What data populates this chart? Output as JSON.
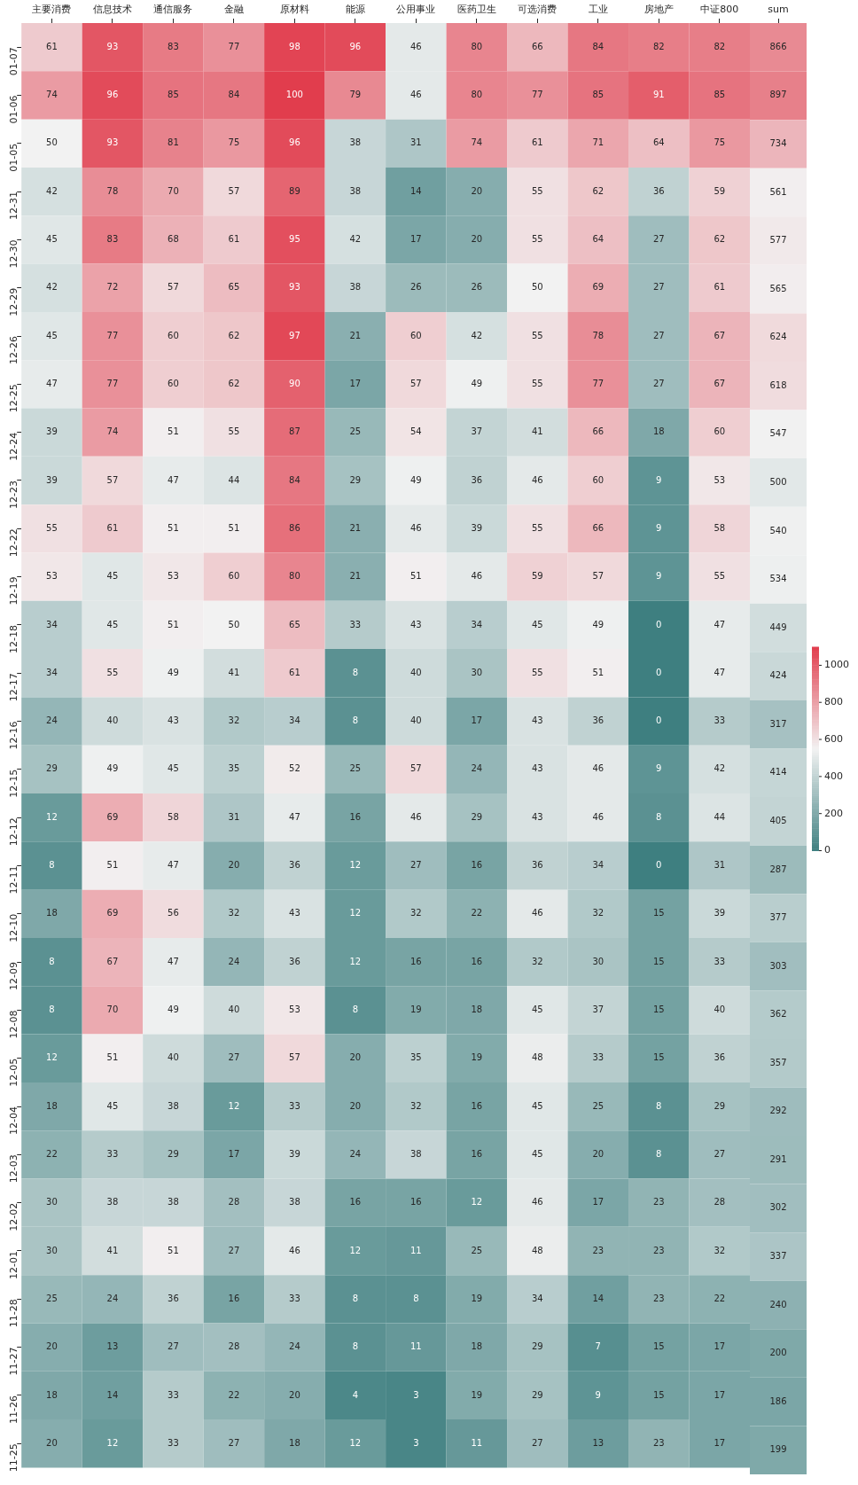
{
  "chart_data": [
    {
      "type": "heatmap",
      "data_labels": true,
      "categories": [
        "主要消费",
        "信息技术",
        "通信服务",
        "金融",
        "原材料",
        "能源",
        "公用事业",
        "医药卫生",
        "可选消费",
        "工业",
        "房地产",
        "中证800"
      ],
      "y_categories": [
        "01-07",
        "01-06",
        "01-05",
        "12-31",
        "12-30",
        "12-29",
        "12-26",
        "12-25",
        "12-24",
        "12-23",
        "12-22",
        "12-19",
        "12-18",
        "12-17",
        "12-16",
        "12-15",
        "12-12",
        "12-11",
        "12-10",
        "12-09",
        "12-08",
        "12-05",
        "12-04",
        "12-03",
        "12-02",
        "12-01",
        "11-28",
        "11-27",
        "11-26",
        "11-25"
      ],
      "cells": [
        [
          61,
          93,
          83,
          77,
          98,
          96,
          46,
          80,
          66,
          84,
          82,
          82
        ],
        [
          74,
          96,
          85,
          84,
          100,
          79,
          46,
          80,
          77,
          85,
          91,
          85
        ],
        [
          50,
          93,
          81,
          75,
          96,
          38,
          31,
          74,
          61,
          71,
          64,
          75
        ],
        [
          42,
          78,
          70,
          57,
          89,
          38,
          14,
          20,
          55,
          62,
          36,
          59
        ],
        [
          45,
          83,
          68,
          61,
          95,
          42,
          17,
          20,
          55,
          64,
          27,
          62
        ],
        [
          42,
          72,
          57,
          65,
          93,
          38,
          26,
          26,
          50,
          69,
          27,
          61
        ],
        [
          45,
          77,
          60,
          62,
          97,
          21,
          60,
          42,
          55,
          78,
          27,
          67
        ],
        [
          47,
          77,
          60,
          62,
          90,
          17,
          57,
          49,
          55,
          77,
          27,
          67
        ],
        [
          39,
          74,
          51,
          55,
          87,
          25,
          54,
          37,
          41,
          66,
          18,
          60
        ],
        [
          39,
          57,
          47,
          44,
          84,
          29,
          49,
          36,
          46,
          60,
          9,
          53
        ],
        [
          55,
          61,
          51,
          51,
          86,
          21,
          46,
          39,
          55,
          66,
          9,
          58
        ],
        [
          53,
          45,
          53,
          60,
          80,
          21,
          51,
          46,
          59,
          57,
          9,
          55
        ],
        [
          34,
          45,
          51,
          50,
          65,
          33,
          43,
          34,
          45,
          49,
          0,
          47
        ],
        [
          34,
          55,
          49,
          41,
          61,
          8,
          40,
          30,
          55,
          51,
          0,
          47
        ],
        [
          24,
          40,
          43,
          32,
          34,
          8,
          40,
          17,
          43,
          36,
          0,
          33
        ],
        [
          29,
          49,
          45,
          35,
          52,
          25,
          57,
          24,
          43,
          46,
          9,
          42
        ],
        [
          12,
          69,
          58,
          31,
          47,
          16,
          46,
          29,
          43,
          46,
          8,
          44
        ],
        [
          8,
          51,
          47,
          20,
          36,
          12,
          27,
          16,
          36,
          34,
          0,
          31
        ],
        [
          18,
          69,
          56,
          32,
          43,
          12,
          32,
          22,
          46,
          32,
          15,
          39
        ],
        [
          8,
          67,
          47,
          24,
          36,
          12,
          16,
          16,
          32,
          30,
          15,
          33
        ],
        [
          8,
          70,
          49,
          40,
          53,
          8,
          19,
          18,
          45,
          37,
          15,
          40
        ],
        [
          12,
          51,
          40,
          27,
          57,
          20,
          35,
          19,
          48,
          33,
          15,
          36
        ],
        [
          18,
          45,
          38,
          12,
          33,
          20,
          32,
          16,
          45,
          25,
          8,
          29
        ],
        [
          22,
          33,
          29,
          17,
          39,
          24,
          38,
          16,
          45,
          20,
          8,
          27
        ],
        [
          30,
          38,
          38,
          28,
          38,
          16,
          16,
          12,
          46,
          17,
          23,
          28
        ],
        [
          30,
          41,
          51,
          27,
          46,
          12,
          11,
          25,
          48,
          23,
          23,
          32
        ],
        [
          25,
          24,
          36,
          16,
          33,
          8,
          8,
          19,
          34,
          14,
          23,
          22
        ],
        [
          20,
          13,
          27,
          28,
          24,
          8,
          11,
          18,
          29,
          7,
          15,
          17
        ],
        [
          18,
          14,
          33,
          22,
          20,
          4,
          3,
          19,
          29,
          9,
          15,
          17
        ],
        [
          20,
          12,
          33,
          27,
          18,
          12,
          3,
          11,
          27,
          13,
          23,
          17
        ]
      ]
    },
    {
      "type": "heatmap",
      "data_labels": true,
      "tick_labels": "x",
      "categories": [
        "sum"
      ],
      "y_categories": [
        null,
        null,
        null,
        null,
        null,
        null,
        null,
        null,
        null,
        null,
        null,
        null,
        null,
        null,
        null,
        null,
        null,
        null,
        null,
        null,
        null,
        null,
        null,
        null,
        null,
        null,
        null,
        null,
        null,
        null
      ],
      "cells": [
        [
          866
        ],
        [
          897
        ],
        [
          734
        ],
        [
          561
        ],
        [
          577
        ],
        [
          565
        ],
        [
          624
        ],
        [
          618
        ],
        [
          547
        ],
        [
          500
        ],
        [
          540
        ],
        [
          534
        ],
        [
          449
        ],
        [
          424
        ],
        [
          317
        ],
        [
          414
        ],
        [
          405
        ],
        [
          287
        ],
        [
          377
        ],
        [
          303
        ],
        [
          362
        ],
        [
          357
        ],
        [
          292
        ],
        [
          291
        ],
        [
          302
        ],
        [
          337
        ],
        [
          240
        ],
        [
          200
        ],
        [
          186
        ],
        [
          199
        ]
      ],
      "clim": [
        0,
        1100
      ],
      "cticks": [
        0,
        200,
        400,
        600,
        800,
        1000
      ]
    }
  ]
}
